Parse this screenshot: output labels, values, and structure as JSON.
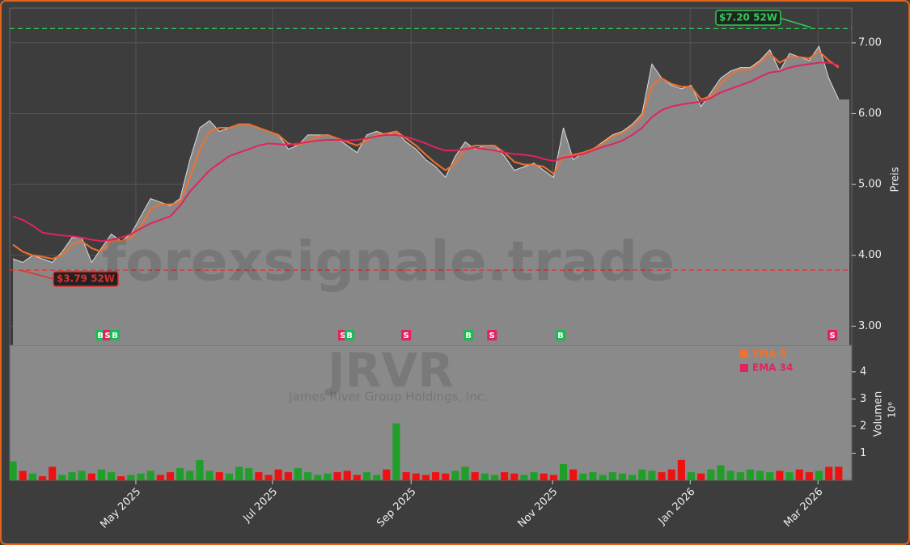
{
  "chart_data": {
    "type": "stock",
    "watermark": "forexsignale.trade",
    "ticker": "JRVR",
    "company": "James River Group Holdings, Inc.",
    "y_label": "Preis",
    "xlim": [
      -1,
      256
    ],
    "xticks": [
      {
        "value": 37.5,
        "label": "May 2025"
      },
      {
        "value": 79.2,
        "label": "Jul 2025"
      },
      {
        "value": 121.5,
        "label": "Sep 2025"
      },
      {
        "value": 164.7,
        "label": "Nov 2025"
      },
      {
        "value": 206.7,
        "label": "Jan 2026"
      },
      {
        "value": 245.7,
        "label": "Mar 2026"
      }
    ],
    "ylim": [
      2.73,
      7.49
    ],
    "yticks": [
      {
        "value": 3,
        "label": "3.00"
      },
      {
        "value": 4,
        "label": "4.00"
      },
      {
        "value": 5,
        "label": "5.00"
      },
      {
        "value": 6,
        "label": "6.00"
      },
      {
        "value": 7,
        "label": "7.00"
      }
    ],
    "grid": true,
    "x": [
      0,
      3,
      6,
      9,
      12,
      15,
      18,
      21,
      24,
      27,
      30,
      33,
      36,
      39,
      42,
      45,
      48,
      51,
      54,
      57,
      60,
      63,
      66,
      69,
      72,
      75,
      78,
      81,
      84,
      87,
      90,
      93,
      96,
      99,
      102,
      105,
      108,
      111,
      114,
      117,
      120,
      123,
      126,
      129,
      132,
      135,
      138,
      141,
      144,
      147,
      150,
      153,
      156,
      159,
      162,
      165,
      168,
      171,
      174,
      177,
      180,
      183,
      186,
      189,
      192,
      195,
      198,
      201,
      204,
      207,
      210,
      213,
      216,
      219,
      222,
      225,
      228,
      231,
      234,
      237,
      240,
      243,
      246,
      249,
      252
    ],
    "close": {
      "color": "#888888",
      "line_color": "#dddddd",
      "values": [
        3.95,
        3.9,
        4.0,
        3.95,
        3.9,
        4.05,
        4.25,
        4.25,
        3.9,
        4.1,
        4.3,
        4.2,
        4.3,
        4.55,
        4.8,
        4.75,
        4.7,
        4.8,
        5.35,
        5.8,
        5.9,
        5.75,
        5.8,
        5.85,
        5.85,
        5.8,
        5.75,
        5.7,
        5.5,
        5.55,
        5.7,
        5.7,
        5.7,
        5.65,
        5.55,
        5.45,
        5.7,
        5.75,
        5.7,
        5.75,
        5.6,
        5.5,
        5.35,
        5.25,
        5.1,
        5.4,
        5.6,
        5.5,
        5.55,
        5.55,
        5.4,
        5.2,
        5.25,
        5.3,
        5.2,
        5.1,
        5.8,
        5.35,
        5.45,
        5.5,
        5.6,
        5.7,
        5.75,
        5.85,
        6.0,
        6.7,
        6.5,
        6.4,
        6.35,
        6.4,
        6.1,
        6.3,
        6.5,
        6.6,
        6.65,
        6.65,
        6.75,
        6.9,
        6.6,
        6.85,
        6.8,
        6.75,
        6.95,
        6.5,
        6.2
      ]
    },
    "series": [
      {
        "name": "EMA 8",
        "color": "#f07030",
        "values": [
          4.15,
          4.05,
          4.0,
          3.98,
          3.95,
          4.0,
          4.15,
          4.2,
          4.1,
          4.05,
          4.2,
          4.2,
          4.25,
          4.4,
          4.65,
          4.72,
          4.72,
          4.75,
          5.1,
          5.5,
          5.75,
          5.8,
          5.8,
          5.85,
          5.85,
          5.8,
          5.75,
          5.7,
          5.58,
          5.55,
          5.62,
          5.68,
          5.7,
          5.65,
          5.6,
          5.55,
          5.62,
          5.7,
          5.72,
          5.75,
          5.65,
          5.55,
          5.42,
          5.3,
          5.2,
          5.3,
          5.5,
          5.55,
          5.55,
          5.55,
          5.45,
          5.32,
          5.28,
          5.28,
          5.25,
          5.15,
          5.4,
          5.42,
          5.45,
          5.5,
          5.58,
          5.68,
          5.72,
          5.82,
          5.95,
          6.4,
          6.5,
          6.42,
          6.38,
          6.38,
          6.2,
          6.25,
          6.42,
          6.55,
          6.62,
          6.62,
          6.72,
          6.85,
          6.72,
          6.8,
          6.8,
          6.78,
          6.88,
          6.75,
          6.65
        ]
      },
      {
        "name": "EMA 34",
        "color": "#e0245e",
        "values": [
          4.55,
          4.5,
          4.42,
          4.32,
          4.3,
          4.28,
          4.27,
          4.25,
          4.22,
          4.2,
          4.22,
          4.25,
          4.3,
          4.38,
          4.45,
          4.5,
          4.55,
          4.7,
          4.9,
          5.05,
          5.2,
          5.3,
          5.4,
          5.45,
          5.5,
          5.55,
          5.58,
          5.57,
          5.56,
          5.58,
          5.6,
          5.62,
          5.63,
          5.63,
          5.62,
          5.63,
          5.65,
          5.68,
          5.7,
          5.7,
          5.67,
          5.63,
          5.58,
          5.52,
          5.48,
          5.48,
          5.5,
          5.52,
          5.5,
          5.48,
          5.45,
          5.43,
          5.42,
          5.4,
          5.36,
          5.33,
          5.38,
          5.4,
          5.43,
          5.48,
          5.53,
          5.57,
          5.62,
          5.7,
          5.8,
          5.95,
          6.05,
          6.1,
          6.13,
          6.15,
          6.17,
          6.22,
          6.3,
          6.35,
          6.4,
          6.45,
          6.52,
          6.58,
          6.6,
          6.65,
          6.68,
          6.7,
          6.72,
          6.72,
          6.68
        ]
      }
    ],
    "hlines": [
      {
        "value": 7.2,
        "label": "$7.20 52W",
        "color": "#2ecc55"
      },
      {
        "value": 3.79,
        "label": "$3.79 52W",
        "color": "#e03030"
      }
    ],
    "signals": [
      {
        "x": 26.7,
        "label": "B",
        "color": "#1db954"
      },
      {
        "x": 28.9,
        "label": "S",
        "color": "#e0245e"
      },
      {
        "x": 31.1,
        "label": "B",
        "color": "#1db954"
      },
      {
        "x": 100.7,
        "label": "S",
        "color": "#e0245e"
      },
      {
        "x": 102.7,
        "label": "B",
        "color": "#1db954"
      },
      {
        "x": 120,
        "label": "S",
        "color": "#e0245e"
      },
      {
        "x": 139,
        "label": "B",
        "color": "#1db954"
      },
      {
        "x": 146.2,
        "label": "S",
        "color": "#e0245e"
      },
      {
        "x": 167.1,
        "label": "B",
        "color": "#1db954"
      },
      {
        "x": 250.1,
        "label": "S",
        "color": "#e0245e"
      }
    ],
    "volume": {
      "y_label": "Volumen",
      "scale_label": "10⁶",
      "ylim": [
        0,
        4.98
      ],
      "yticks": [
        1,
        2,
        3,
        4
      ],
      "up_color": "#1f9e2a",
      "down_color": "#ee1111",
      "values": [
        0.7,
        0.35,
        0.25,
        0.15,
        0.5,
        0.2,
        0.3,
        0.35,
        0.25,
        0.4,
        0.3,
        0.15,
        0.2,
        0.25,
        0.35,
        0.2,
        0.3,
        0.45,
        0.35,
        0.75,
        0.35,
        0.3,
        0.25,
        0.5,
        0.45,
        0.3,
        0.2,
        0.4,
        0.3,
        0.45,
        0.3,
        0.2,
        0.25,
        0.3,
        0.35,
        0.2,
        0.3,
        0.2,
        0.4,
        2.1,
        0.3,
        0.25,
        0.2,
        0.3,
        0.25,
        0.35,
        0.5,
        0.3,
        0.25,
        0.2,
        0.3,
        0.25,
        0.2,
        0.3,
        0.25,
        0.2,
        0.6,
        0.4,
        0.25,
        0.3,
        0.2,
        0.3,
        0.25,
        0.2,
        0.4,
        0.35,
        0.3,
        0.4,
        0.75,
        0.3,
        0.25,
        0.4,
        0.55,
        0.35,
        0.3,
        0.4,
        0.35,
        0.3,
        0.35,
        0.3,
        0.4,
        0.3,
        0.35,
        0.5,
        0.5
      ]
    }
  }
}
